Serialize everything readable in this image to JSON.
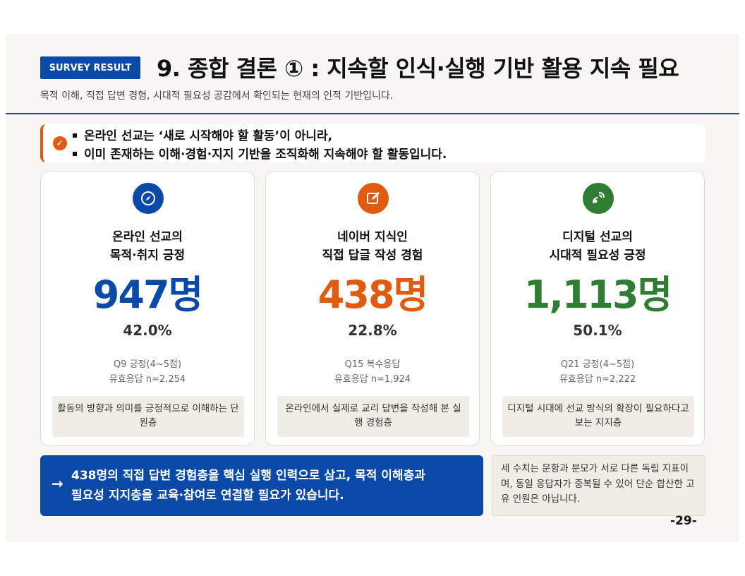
{
  "header": {
    "badge": "SURVEY RESULT",
    "title": "9. 종합 결론 ① : 지속할 인식·실행 기반 활용 지속 필요",
    "subtitle": "목적 이해, 직접 답변 경험, 시대적 필요성 공감에서 확인되는 현재의 인적 기반입니다."
  },
  "callout": {
    "line1": "온라인 선교는 ‘새로 시작해야 할 활동’이 아니라,",
    "line2": "이미 존재하는 이해·경험·지지 기반을 조직화해 지속해야 할 활동입니다."
  },
  "cards": [
    {
      "icon": "compass-icon",
      "label1": "온라인 선교의",
      "label2": "목적·취지 긍정",
      "count": "947명",
      "percent": "42.0%",
      "meta1": "Q9 긍정(4~5점)",
      "meta2": "유효응답 n=2,254",
      "note": "활동의 방향과 의미를 긍정적으로 이해하는 단원층",
      "color": "#0a4aa6"
    },
    {
      "icon": "edit-icon",
      "label1": "네이버 지식인",
      "label2": "직접 답글 작성 경험",
      "count": "438명",
      "percent": "22.8%",
      "meta1": "Q15 복수응답",
      "meta2": "유효응답 n=1,924",
      "note": "온라인에서 실제로 교리 답변을 작성해 본 실행 경험층",
      "color": "#e05a10"
    },
    {
      "icon": "satellite-icon",
      "label1": "디지털 선교의",
      "label2": "시대적 필요성 긍정",
      "count": "1,113명",
      "percent": "50.1%",
      "meta1": "Q21 긍정(4~5점)",
      "meta2": "유효응답 n=2,222",
      "note": "디지털 시대에 선교 방식의 확장이 필요하다고 보는 지지층",
      "color": "#2e7d32"
    }
  ],
  "conclusion": {
    "arrow": "→",
    "line1": "438명의 직접 답변 경험층을 핵심 실행 인력으로 삼고, 목적 이해층과",
    "line2": "필요성 지지층을 교육·참여로 연결할 필요가 있습니다."
  },
  "footnote": "세 수치는 문항과 분모가 서로 다른 독립 지표이며, 동일 응답자가 중복될 수 있어 단순 합산한 고유 인원은 아닙니다.",
  "page_number": "-29-"
}
